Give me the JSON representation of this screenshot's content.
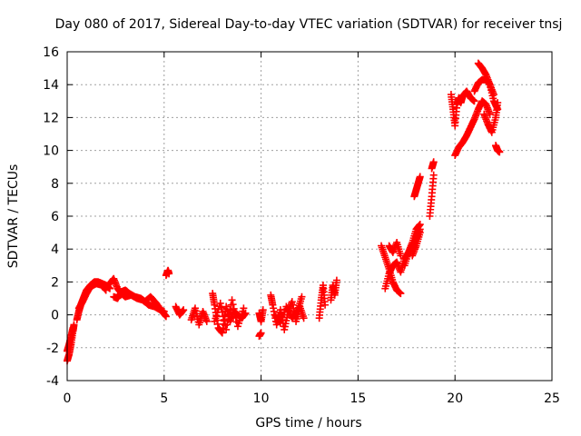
{
  "chart_data": {
    "type": "scatter",
    "title": "Day 080 of 2017, Sidereal Day-to-day VTEC variation (SDTVAR) for receiver tnsj",
    "xlabel": "GPS time / hours",
    "ylabel": "SDTVAR / TECUs",
    "xlim": [
      0,
      25
    ],
    "ylim": [
      -4,
      16
    ],
    "xticks": [
      0,
      5,
      10,
      15,
      20,
      25
    ],
    "yticks": [
      -4,
      -2,
      0,
      2,
      4,
      6,
      8,
      10,
      12,
      14,
      16
    ],
    "grid": true,
    "marker": "+",
    "color": "#ff0000",
    "series": [
      {
        "name": "arc-0",
        "x": [
          0.0,
          0.1,
          0.2,
          0.3,
          0.35
        ],
        "y": [
          -2.8,
          -2.4,
          -1.8,
          -1.0,
          -0.6
        ]
      },
      {
        "name": "arc-1",
        "x": [
          0.0,
          0.1,
          0.2,
          0.3
        ],
        "y": [
          -2.2,
          -1.8,
          -1.3,
          -0.8
        ]
      },
      {
        "name": "arc-2",
        "x": [
          0.5,
          0.6,
          0.7,
          0.8,
          0.9,
          1.0,
          1.2,
          1.4,
          1.6,
          1.8,
          2.0,
          2.2
        ],
        "y": [
          -0.3,
          0.2,
          0.6,
          0.9,
          1.2,
          1.5,
          1.8,
          2.0,
          2.0,
          1.9,
          1.8,
          1.6
        ]
      },
      {
        "name": "arc-3",
        "x": [
          0.6,
          0.8,
          1.0,
          1.2,
          1.5,
          1.8,
          2.0
        ],
        "y": [
          0.4,
          0.8,
          1.3,
          1.7,
          1.9,
          1.8,
          1.5
        ]
      },
      {
        "name": "arc-4",
        "x": [
          2.2,
          2.4,
          2.6,
          2.8,
          3.0,
          3.3,
          3.6,
          3.9,
          4.2,
          4.5,
          4.8,
          5.0
        ],
        "y": [
          1.9,
          2.2,
          1.6,
          1.3,
          1.1,
          1.2,
          1.0,
          0.9,
          0.6,
          0.5,
          0.3,
          0.2
        ]
      },
      {
        "name": "arc-5",
        "x": [
          2.4,
          2.6,
          2.8,
          3.0,
          3.2,
          3.5,
          3.8,
          4.0,
          4.3,
          4.6,
          4.9,
          5.1
        ],
        "y": [
          1.1,
          1.0,
          1.4,
          1.5,
          1.3,
          1.1,
          1.0,
          0.8,
          1.1,
          0.7,
          0.2,
          -0.1
        ]
      },
      {
        "name": "arc-6",
        "x": [
          5.1,
          5.2,
          5.25
        ],
        "y": [
          2.4,
          2.7,
          2.5
        ]
      },
      {
        "name": "arc-7",
        "x": [
          5.6,
          5.8,
          6.0
        ],
        "y": [
          0.5,
          0.0,
          0.3
        ]
      },
      {
        "name": "arc-8",
        "x": [
          6.4,
          6.6,
          6.8,
          7.0,
          7.2
        ],
        "y": [
          -0.3,
          0.4,
          -0.6,
          0.2,
          -0.4
        ]
      },
      {
        "name": "arc-9",
        "x": [
          7.5,
          7.6,
          7.8,
          8.0,
          8.2,
          8.4,
          8.6,
          8.8,
          9.0,
          9.2
        ],
        "y": [
          1.3,
          0.6,
          -0.8,
          -1.1,
          0.5,
          -0.4,
          0.2,
          0.0,
          -0.2,
          0.1
        ]
      },
      {
        "name": "arc-10",
        "x": [
          7.6,
          7.9,
          8.2,
          8.5,
          8.8,
          9.1
        ],
        "y": [
          -0.4,
          0.7,
          -0.9,
          0.9,
          -0.7,
          0.4
        ]
      },
      {
        "name": "arc-11",
        "x": [
          9.9,
          10.0
        ],
        "y": [
          -1.3,
          -1.1
        ]
      },
      {
        "name": "arc-12",
        "x": [
          9.9,
          10.0,
          10.1
        ],
        "y": [
          0.1,
          -0.4,
          0.3
        ]
      },
      {
        "name": "arc-13",
        "x": [
          10.5,
          10.6,
          10.8,
          11.0,
          11.2,
          11.4,
          11.6,
          11.8,
          12.0,
          12.2
        ],
        "y": [
          1.2,
          0.6,
          -0.6,
          0.3,
          -0.9,
          0.2,
          0.8,
          -0.4,
          0.5,
          -0.2
        ]
      },
      {
        "name": "arc-14",
        "x": [
          10.7,
          11.0,
          11.3,
          11.6,
          11.9,
          12.1
        ],
        "y": [
          0.0,
          -0.5,
          0.5,
          -0.2,
          0.3,
          1.1
        ]
      },
      {
        "name": "arc-15",
        "x": [
          13.0,
          13.1,
          13.2,
          13.3
        ],
        "y": [
          -0.2,
          0.9,
          1.8,
          0.6
        ]
      },
      {
        "name": "arc-16",
        "x": [
          13.6,
          13.7,
          13.8,
          13.9
        ],
        "y": [
          0.9,
          1.8,
          1.2,
          2.1
        ]
      },
      {
        "name": "arc-17",
        "x": [
          16.2,
          16.4,
          16.6,
          16.8,
          17.0,
          17.2
        ],
        "y": [
          4.2,
          3.5,
          2.8,
          2.0,
          1.5,
          1.3
        ]
      },
      {
        "name": "arc-18",
        "x": [
          16.4,
          16.6,
          16.8,
          17.0,
          17.2,
          17.4,
          17.6,
          17.8,
          18.0,
          18.2
        ],
        "y": [
          1.6,
          2.5,
          3.0,
          3.2,
          2.6,
          3.4,
          3.8,
          4.2,
          4.6,
          5.2
        ]
      },
      {
        "name": "arc-19",
        "x": [
          16.6,
          16.8,
          17.0,
          17.2
        ],
        "y": [
          4.2,
          3.8,
          4.4,
          3.6
        ]
      },
      {
        "name": "arc-20",
        "x": [
          17.4,
          17.6,
          17.8,
          18.0,
          18.2
        ],
        "y": [
          3.0,
          3.8,
          4.4,
          5.2,
          5.5
        ]
      },
      {
        "name": "arc-21",
        "x": [
          17.8,
          18.0,
          18.2
        ],
        "y": [
          3.6,
          4.2,
          5.0
        ]
      },
      {
        "name": "arc-22",
        "x": [
          17.9,
          18.0,
          18.1,
          18.2
        ],
        "y": [
          7.2,
          7.6,
          8.0,
          8.4
        ]
      },
      {
        "name": "arc-23",
        "x": [
          18.7,
          18.8,
          18.9
        ],
        "y": [
          6.0,
          7.2,
          8.5
        ]
      },
      {
        "name": "arc-24",
        "x": [
          18.8,
          18.9
        ],
        "y": [
          8.9,
          9.3
        ]
      },
      {
        "name": "arc-25",
        "x": [
          19.8,
          19.9,
          20.0,
          20.1,
          20.2,
          20.3,
          20.4,
          20.6,
          20.8,
          21.0
        ],
        "y": [
          13.4,
          12.5,
          11.5,
          12.8,
          13.2,
          12.9,
          13.3,
          13.6,
          13.2,
          13.0
        ]
      },
      {
        "name": "arc-26",
        "x": [
          20.0,
          20.2,
          20.4,
          20.6,
          20.8,
          21.0,
          21.2,
          21.4,
          21.6,
          21.8
        ],
        "y": [
          9.7,
          10.2,
          10.5,
          10.9,
          11.4,
          11.9,
          12.5,
          13.0,
          12.8,
          12.2
        ]
      },
      {
        "name": "arc-27",
        "x": [
          21.0,
          21.2,
          21.4,
          21.6,
          21.8,
          22.0
        ],
        "y": [
          13.6,
          14.1,
          14.3,
          14.3,
          14.0,
          13.4
        ]
      },
      {
        "name": "arc-28",
        "x": [
          21.2,
          21.4,
          21.6,
          21.8,
          22.0,
          22.2
        ],
        "y": [
          15.3,
          15.0,
          14.6,
          14.0,
          13.0,
          12.5
        ]
      },
      {
        "name": "arc-29",
        "x": [
          21.5,
          21.7,
          21.9,
          22.1,
          22.2
        ],
        "y": [
          12.2,
          11.6,
          11.1,
          12.0,
          12.9
        ]
      },
      {
        "name": "arc-30",
        "x": [
          22.1,
          22.2,
          22.3
        ],
        "y": [
          10.3,
          10.0,
          9.9
        ]
      }
    ]
  }
}
